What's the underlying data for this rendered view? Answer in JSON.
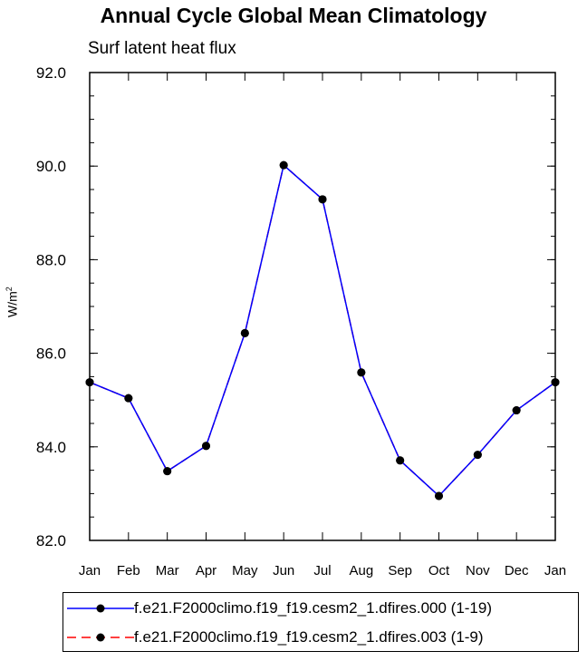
{
  "chart_data": {
    "type": "line",
    "title": "Annual Cycle Global Mean Climatology",
    "subtitle": "Surf latent heat flux",
    "ylabel": "W/m",
    "ylabel_sup": "2",
    "categories": [
      "Jan",
      "Feb",
      "Mar",
      "Apr",
      "May",
      "Jun",
      "Jul",
      "Aug",
      "Sep",
      "Oct",
      "Nov",
      "Dec",
      "Jan"
    ],
    "ylim": [
      82.0,
      92.0
    ],
    "yticks": [
      "82.0",
      "84.0",
      "86.0",
      "88.0",
      "90.0",
      "92.0"
    ],
    "grid": false,
    "legend_position": "bottom",
    "series": [
      {
        "name": "f.e21.F2000climo.f19_f19.cesm2_1.dfires.000 (1-19)",
        "color": "#0000ff",
        "style": "solid",
        "values": [
          85.38,
          85.04,
          83.48,
          84.02,
          86.43,
          90.02,
          89.29,
          85.59,
          83.71,
          82.95,
          83.83,
          84.78,
          85.38
        ]
      },
      {
        "name": "f.e21.F2000climo.f19_f19.cesm2_1.dfires.003 (1-9)",
        "color": "#ff0000",
        "style": "dashed",
        "values": [
          85.38,
          85.04,
          83.48,
          84.02,
          86.43,
          90.02,
          89.29,
          85.59,
          83.71,
          82.95,
          83.83,
          84.78,
          85.38
        ]
      }
    ]
  }
}
